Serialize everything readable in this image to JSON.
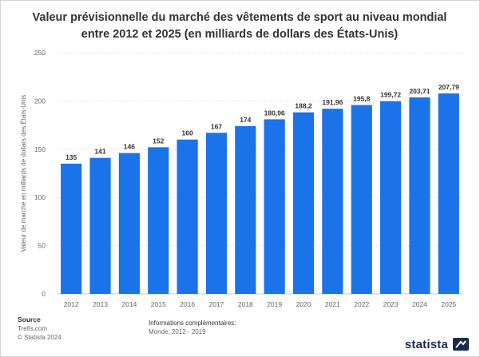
{
  "chart_data": {
    "type": "bar",
    "title_line1": "Valeur prévisionnelle du marché des vêtements de sport au niveau mondial",
    "title_line2": "entre 2012 et 2025 (en milliards de dollars des États-Unis)",
    "xlabel": "",
    "ylabel": "Valeur de marché en milliards de dollars des États-Unis",
    "ylim": [
      0,
      250
    ],
    "yticks": [
      0,
      50,
      100,
      150,
      200,
      250
    ],
    "categories": [
      "2012",
      "2013",
      "2014",
      "2015",
      "2016",
      "2017",
      "2018",
      "2019",
      "2020",
      "2021",
      "2022",
      "2023",
      "2024",
      "2025"
    ],
    "values": [
      135,
      141,
      146,
      152,
      160,
      167,
      174,
      180.96,
      188.2,
      191.96,
      195.8,
      199.72,
      203.71,
      207.79
    ],
    "value_labels": [
      "135",
      "141",
      "146",
      "152",
      "160",
      "167",
      "174",
      "180,96",
      "188,2",
      "191,96",
      "195,8",
      "199,72",
      "203,71",
      "207,79"
    ],
    "bar_color": "#1a73e8",
    "grid": true
  },
  "footer": {
    "source_heading": "Source",
    "source_name": "Trefis.com",
    "copyright": "© Statista 2024",
    "info_heading": "Informations complémentaires:",
    "info_detail": "Monde; 2012 - 2019"
  },
  "brand": {
    "name": "statista",
    "icon": "statista-logo-icon"
  }
}
